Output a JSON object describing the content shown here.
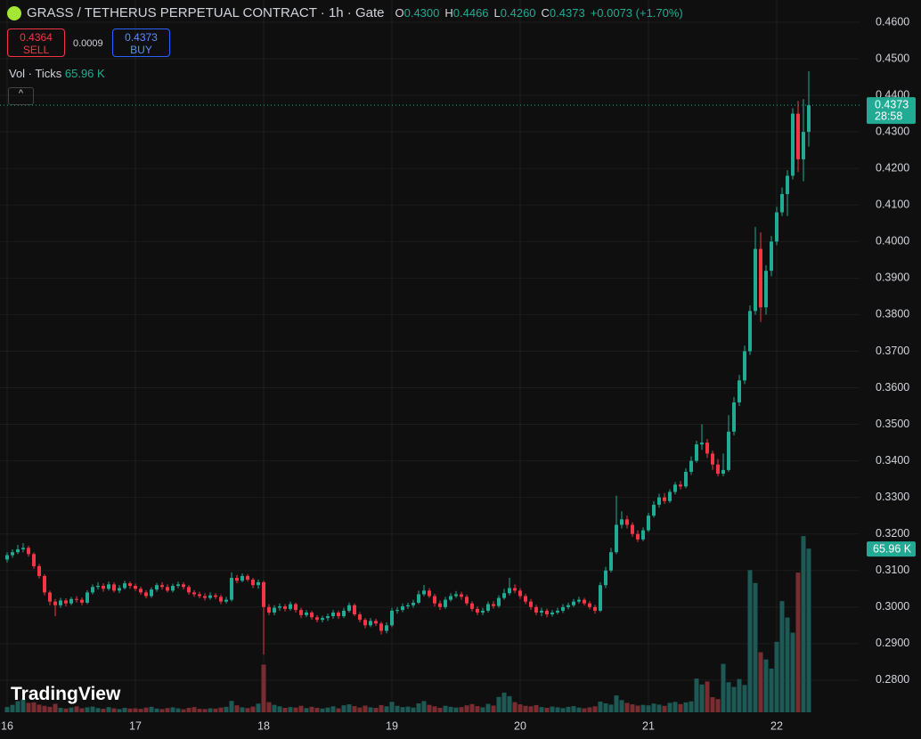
{
  "header": {
    "title": "GRASS / TETHERUS PERPETUAL CONTRACT · 1h · Gate",
    "ohlc": [
      {
        "key": "O",
        "value": "0.4300"
      },
      {
        "key": "H",
        "value": "0.4466"
      },
      {
        "key": "L",
        "value": "0.4260"
      },
      {
        "key": "C",
        "value": "0.4373"
      }
    ],
    "change": "+0.0073 (+1.70%)",
    "sell_price": "0.4364",
    "sell": "SELL",
    "spread": "0.0009",
    "buy_price": "0.4373",
    "buy": "BUY",
    "volume_title": "Vol · Ticks",
    "volume_value": "65.96 K",
    "logo": "TradingView"
  },
  "chart_data": {
    "type": "candlestick",
    "grid": true,
    "up_color": "#22ab94",
    "down_color": "#f23645",
    "volume_up_color": "#1d5a55",
    "volume_down_color": "#7a2c31",
    "day_labels": [
      "16",
      "17",
      "18",
      "19",
      "20",
      "21",
      "22"
    ],
    "ylim": [
      0.27121,
      0.46609
    ],
    "yticks": [
      {
        "value": 0.46,
        "label": "0.4600"
      },
      {
        "value": 0.45,
        "label": "0.4500"
      },
      {
        "value": 0.44,
        "label": "0.4400"
      },
      {
        "value": 0.43,
        "label": "0.4300"
      },
      {
        "value": 0.42,
        "label": "0.4200"
      },
      {
        "value": 0.41,
        "label": "0.4100"
      },
      {
        "value": 0.4,
        "label": "0.4000"
      },
      {
        "value": 0.39,
        "label": "0.3900"
      },
      {
        "value": 0.38,
        "label": "0.3800"
      },
      {
        "value": 0.37,
        "label": "0.3700"
      },
      {
        "value": 0.36,
        "label": "0.3600"
      },
      {
        "value": 0.35,
        "label": "0.3500"
      },
      {
        "value": 0.34,
        "label": "0.3400"
      },
      {
        "value": 0.33,
        "label": "0.3300"
      },
      {
        "value": 0.32,
        "label": "0.3200"
      },
      {
        "value": 0.31,
        "label": "0.3100"
      },
      {
        "value": 0.3,
        "label": "0.3000"
      },
      {
        "value": 0.29,
        "label": "0.2900"
      },
      {
        "value": 0.28,
        "label": "0.2800"
      }
    ],
    "volume_ylim": [
      0,
      287
    ],
    "last_price_label": "0.4373",
    "countdown": "28:58",
    "candles": [
      [
        0.313,
        0.315,
        0.3122,
        0.3142
      ],
      [
        0.3142,
        0.3158,
        0.3135,
        0.315
      ],
      [
        0.315,
        0.317,
        0.3145,
        0.3158
      ],
      [
        0.3158,
        0.3175,
        0.315,
        0.3162
      ],
      [
        0.3162,
        0.3168,
        0.3138,
        0.3145
      ],
      [
        0.3145,
        0.315,
        0.3105,
        0.3112
      ],
      [
        0.3112,
        0.3118,
        0.3078,
        0.3085
      ],
      [
        0.3085,
        0.309,
        0.3032,
        0.304
      ],
      [
        0.304,
        0.3045,
        0.3005,
        0.3015
      ],
      [
        0.3015,
        0.3022,
        0.2975,
        0.3005
      ],
      [
        0.3005,
        0.3025,
        0.2998,
        0.3018
      ],
      [
        0.3018,
        0.3024,
        0.3002,
        0.301
      ],
      [
        0.301,
        0.3028,
        0.3005,
        0.3022
      ],
      [
        0.3022,
        0.303,
        0.3012,
        0.302
      ],
      [
        0.302,
        0.3026,
        0.3005,
        0.3012
      ],
      [
        0.3012,
        0.3046,
        0.3008,
        0.304
      ],
      [
        0.304,
        0.3062,
        0.3035,
        0.3055
      ],
      [
        0.3055,
        0.3068,
        0.3048,
        0.3058
      ],
      [
        0.3058,
        0.3065,
        0.3042,
        0.305
      ],
      [
        0.305,
        0.307,
        0.3045,
        0.3062
      ],
      [
        0.3062,
        0.3068,
        0.304,
        0.3045
      ],
      [
        0.3045,
        0.306,
        0.3038,
        0.3052
      ],
      [
        0.3052,
        0.3072,
        0.3048,
        0.3065
      ],
      [
        0.3065,
        0.307,
        0.305,
        0.3058
      ],
      [
        0.3058,
        0.3064,
        0.3044,
        0.305
      ],
      [
        0.305,
        0.3056,
        0.3034,
        0.304
      ],
      [
        0.304,
        0.3046,
        0.3024,
        0.303
      ],
      [
        0.303,
        0.3054,
        0.3025,
        0.3048
      ],
      [
        0.3048,
        0.3066,
        0.3042,
        0.306
      ],
      [
        0.306,
        0.3068,
        0.3048,
        0.3055
      ],
      [
        0.3055,
        0.3062,
        0.304,
        0.3045
      ],
      [
        0.3045,
        0.3064,
        0.304,
        0.3058
      ],
      [
        0.3058,
        0.307,
        0.3052,
        0.3062
      ],
      [
        0.3062,
        0.3068,
        0.3048,
        0.3055
      ],
      [
        0.3055,
        0.306,
        0.3034,
        0.304
      ],
      [
        0.304,
        0.3046,
        0.3028,
        0.3035
      ],
      [
        0.3035,
        0.3042,
        0.3024,
        0.303
      ],
      [
        0.303,
        0.3038,
        0.3018,
        0.3025
      ],
      [
        0.3025,
        0.304,
        0.302,
        0.3032
      ],
      [
        0.3032,
        0.3038,
        0.3022,
        0.3028
      ],
      [
        0.3028,
        0.3034,
        0.3008,
        0.3015
      ],
      [
        0.3015,
        0.3028,
        0.301,
        0.302
      ],
      [
        0.302,
        0.3095,
        0.3015,
        0.308
      ],
      [
        0.308,
        0.3088,
        0.3065,
        0.3072
      ],
      [
        0.3072,
        0.3092,
        0.3068,
        0.3085
      ],
      [
        0.3085,
        0.309,
        0.307,
        0.3075
      ],
      [
        0.3075,
        0.308,
        0.3052,
        0.306
      ],
      [
        0.306,
        0.3075,
        0.305,
        0.3068
      ],
      [
        0.3068,
        0.3072,
        0.287,
        0.3
      ],
      [
        0.3,
        0.3008,
        0.2978,
        0.2985
      ],
      [
        0.2985,
        0.3005,
        0.2978,
        0.2998
      ],
      [
        0.2998,
        0.301,
        0.299,
        0.3002
      ],
      [
        0.3002,
        0.3008,
        0.2988,
        0.2995
      ],
      [
        0.2995,
        0.3015,
        0.299,
        0.3008
      ],
      [
        0.3008,
        0.3012,
        0.2985,
        0.2992
      ],
      [
        0.2992,
        0.2998,
        0.297,
        0.2978
      ],
      [
        0.2978,
        0.2992,
        0.2972,
        0.2985
      ],
      [
        0.2985,
        0.299,
        0.2965,
        0.2972
      ],
      [
        0.2972,
        0.2978,
        0.2958,
        0.2965
      ],
      [
        0.2965,
        0.2976,
        0.2958,
        0.297
      ],
      [
        0.297,
        0.2982,
        0.2962,
        0.2975
      ],
      [
        0.2975,
        0.2992,
        0.2968,
        0.2985
      ],
      [
        0.2985,
        0.299,
        0.2968,
        0.2975
      ],
      [
        0.2975,
        0.2998,
        0.297,
        0.299
      ],
      [
        0.299,
        0.3012,
        0.2985,
        0.3005
      ],
      [
        0.3005,
        0.301,
        0.2975,
        0.298
      ],
      [
        0.298,
        0.2986,
        0.2958,
        0.2965
      ],
      [
        0.2965,
        0.297,
        0.2942,
        0.295
      ],
      [
        0.295,
        0.297,
        0.2945,
        0.2962
      ],
      [
        0.2962,
        0.2968,
        0.2948,
        0.2955
      ],
      [
        0.2955,
        0.296,
        0.2925,
        0.2935
      ],
      [
        0.2935,
        0.2958,
        0.2928,
        0.295
      ],
      [
        0.295,
        0.2998,
        0.2945,
        0.299
      ],
      [
        0.299,
        0.3,
        0.2982,
        0.2992
      ],
      [
        0.2992,
        0.301,
        0.2986,
        0.3002
      ],
      [
        0.3002,
        0.3012,
        0.2995,
        0.3005
      ],
      [
        0.3005,
        0.302,
        0.2998,
        0.3012
      ],
      [
        0.3012,
        0.3045,
        0.3008,
        0.3035
      ],
      [
        0.3035,
        0.306,
        0.303,
        0.3045
      ],
      [
        0.3045,
        0.3052,
        0.3025,
        0.303
      ],
      [
        0.303,
        0.3036,
        0.3002,
        0.301
      ],
      [
        0.301,
        0.3018,
        0.2992,
        0.3
      ],
      [
        0.3,
        0.3028,
        0.2995,
        0.302
      ],
      [
        0.302,
        0.3038,
        0.3015,
        0.303
      ],
      [
        0.303,
        0.3044,
        0.3025,
        0.3035
      ],
      [
        0.3035,
        0.3042,
        0.302,
        0.3028
      ],
      [
        0.3028,
        0.3034,
        0.3004,
        0.301
      ],
      [
        0.301,
        0.3016,
        0.2988,
        0.2995
      ],
      [
        0.2995,
        0.3002,
        0.2978,
        0.2985
      ],
      [
        0.2985,
        0.2998,
        0.2978,
        0.299
      ],
      [
        0.299,
        0.3015,
        0.2985,
        0.3008
      ],
      [
        0.3008,
        0.3016,
        0.2996,
        0.3003
      ],
      [
        0.3003,
        0.3032,
        0.2998,
        0.3025
      ],
      [
        0.3025,
        0.305,
        0.302,
        0.3038
      ],
      [
        0.3038,
        0.308,
        0.3032,
        0.3052
      ],
      [
        0.3052,
        0.3062,
        0.3038,
        0.3045
      ],
      [
        0.3045,
        0.3052,
        0.3022,
        0.303
      ],
      [
        0.303,
        0.3036,
        0.3008,
        0.3015
      ],
      [
        0.3015,
        0.3022,
        0.2992,
        0.3
      ],
      [
        0.3,
        0.3006,
        0.2978,
        0.2985
      ],
      [
        0.2985,
        0.2998,
        0.2975,
        0.299
      ],
      [
        0.299,
        0.2996,
        0.2972,
        0.298
      ],
      [
        0.298,
        0.2992,
        0.2974,
        0.2985
      ],
      [
        0.2985,
        0.2998,
        0.298,
        0.299
      ],
      [
        0.299,
        0.3008,
        0.2984,
        0.3
      ],
      [
        0.3,
        0.3012,
        0.2994,
        0.3005
      ],
      [
        0.3005,
        0.3022,
        0.3,
        0.3015
      ],
      [
        0.3015,
        0.3028,
        0.301,
        0.302
      ],
      [
        0.302,
        0.3025,
        0.3004,
        0.301
      ],
      [
        0.301,
        0.3016,
        0.2994,
        0.3
      ],
      [
        0.3,
        0.3006,
        0.2982,
        0.299
      ],
      [
        0.299,
        0.3068,
        0.2986,
        0.306
      ],
      [
        0.306,
        0.311,
        0.3052,
        0.31
      ],
      [
        0.31,
        0.3162,
        0.3095,
        0.315
      ],
      [
        0.315,
        0.3305,
        0.3145,
        0.3225
      ],
      [
        0.3225,
        0.3262,
        0.3215,
        0.324
      ],
      [
        0.324,
        0.325,
        0.3215,
        0.3225
      ],
      [
        0.3225,
        0.3232,
        0.3192,
        0.32
      ],
      [
        0.32,
        0.321,
        0.3178,
        0.3185
      ],
      [
        0.3185,
        0.3218,
        0.318,
        0.321
      ],
      [
        0.321,
        0.3258,
        0.3205,
        0.325
      ],
      [
        0.325,
        0.329,
        0.3245,
        0.328
      ],
      [
        0.328,
        0.331,
        0.3272,
        0.33
      ],
      [
        0.33,
        0.3312,
        0.3282,
        0.329
      ],
      [
        0.329,
        0.3322,
        0.3285,
        0.3315
      ],
      [
        0.3315,
        0.3342,
        0.3308,
        0.3335
      ],
      [
        0.3335,
        0.3345,
        0.3322,
        0.333
      ],
      [
        0.333,
        0.338,
        0.3325,
        0.337
      ],
      [
        0.337,
        0.3412,
        0.3362,
        0.34
      ],
      [
        0.34,
        0.3455,
        0.3395,
        0.3445
      ],
      [
        0.3445,
        0.35,
        0.343,
        0.345
      ],
      [
        0.345,
        0.346,
        0.3408,
        0.342
      ],
      [
        0.342,
        0.3428,
        0.3375,
        0.339
      ],
      [
        0.339,
        0.3405,
        0.3358,
        0.3365
      ],
      [
        0.3365,
        0.342,
        0.3358,
        0.3375
      ],
      [
        0.3375,
        0.3525,
        0.337,
        0.348
      ],
      [
        0.348,
        0.3575,
        0.347,
        0.356
      ],
      [
        0.356,
        0.3635,
        0.355,
        0.362
      ],
      [
        0.362,
        0.3715,
        0.361,
        0.37
      ],
      [
        0.37,
        0.3825,
        0.369,
        0.381
      ],
      [
        0.381,
        0.404,
        0.38,
        0.398
      ],
      [
        0.398,
        0.4025,
        0.378,
        0.382
      ],
      [
        0.382,
        0.3935,
        0.38,
        0.392
      ],
      [
        0.392,
        0.4015,
        0.3905,
        0.4
      ],
      [
        0.4,
        0.4095,
        0.399,
        0.408
      ],
      [
        0.408,
        0.4148,
        0.407,
        0.413
      ],
      [
        0.413,
        0.4195,
        0.407,
        0.418
      ],
      [
        0.418,
        0.4365,
        0.417,
        0.435
      ],
      [
        0.435,
        0.4385,
        0.419,
        0.4225
      ],
      [
        0.4225,
        0.439,
        0.4165,
        0.43
      ],
      [
        0.43,
        0.4466,
        0.426,
        0.4373
      ]
    ],
    "volume": [
      2.1,
      3.0,
      4.5,
      5.2,
      3.8,
      4.0,
      3.1,
      2.6,
      2.2,
      3.4,
      1.8,
      1.5,
      1.9,
      2.4,
      1.6,
      2.0,
      2.3,
      1.7,
      1.4,
      2.1,
      1.6,
      1.3,
      1.8,
      1.5,
      1.6,
      1.4,
      1.9,
      2.2,
      1.5,
      1.3,
      1.7,
      2.0,
      1.6,
      1.2,
      1.8,
      2.1,
      1.4,
      1.3,
      1.6,
      1.5,
      1.9,
      2.2,
      4.6,
      2.8,
      2.0,
      1.7,
      2.3,
      3.5,
      19.2,
      4.1,
      3.0,
      2.4,
      1.8,
      2.1,
      1.9,
      2.6,
      1.7,
      2.2,
      1.8,
      1.5,
      1.9,
      2.4,
      1.6,
      2.8,
      3.2,
      2.5,
      1.9,
      2.7,
      2.0,
      1.8,
      2.9,
      2.4,
      4.2,
      2.6,
      2.1,
      2.3,
      1.9,
      3.6,
      4.5,
      3.0,
      2.4,
      1.8,
      2.6,
      2.2,
      1.9,
      2.1,
      2.8,
      3.3,
      2.5,
      2.0,
      3.4,
      2.7,
      6.2,
      7.9,
      6.5,
      4.1,
      3.2,
      2.6,
      2.4,
      2.9,
      2.1,
      1.8,
      2.3,
      2.0,
      1.7,
      2.2,
      2.5,
      1.9,
      1.6,
      2.0,
      2.4,
      4.3,
      3.6,
      3.1,
      6.8,
      4.9,
      3.8,
      3.2,
      2.7,
      3.0,
      2.8,
      3.5,
      3.1,
      2.6,
      3.8,
      4.2,
      3.3,
      4.0,
      4.4,
      13.6,
      11.2,
      12.4,
      6.1,
      5.3,
      19.5,
      12.1,
      10.2,
      13.4,
      11.0,
      57.3,
      52.1,
      24.2,
      21.3,
      17.6,
      28.4,
      44.8,
      38.2,
      32.1,
      56.3,
      71.0,
      65.96
    ]
  }
}
